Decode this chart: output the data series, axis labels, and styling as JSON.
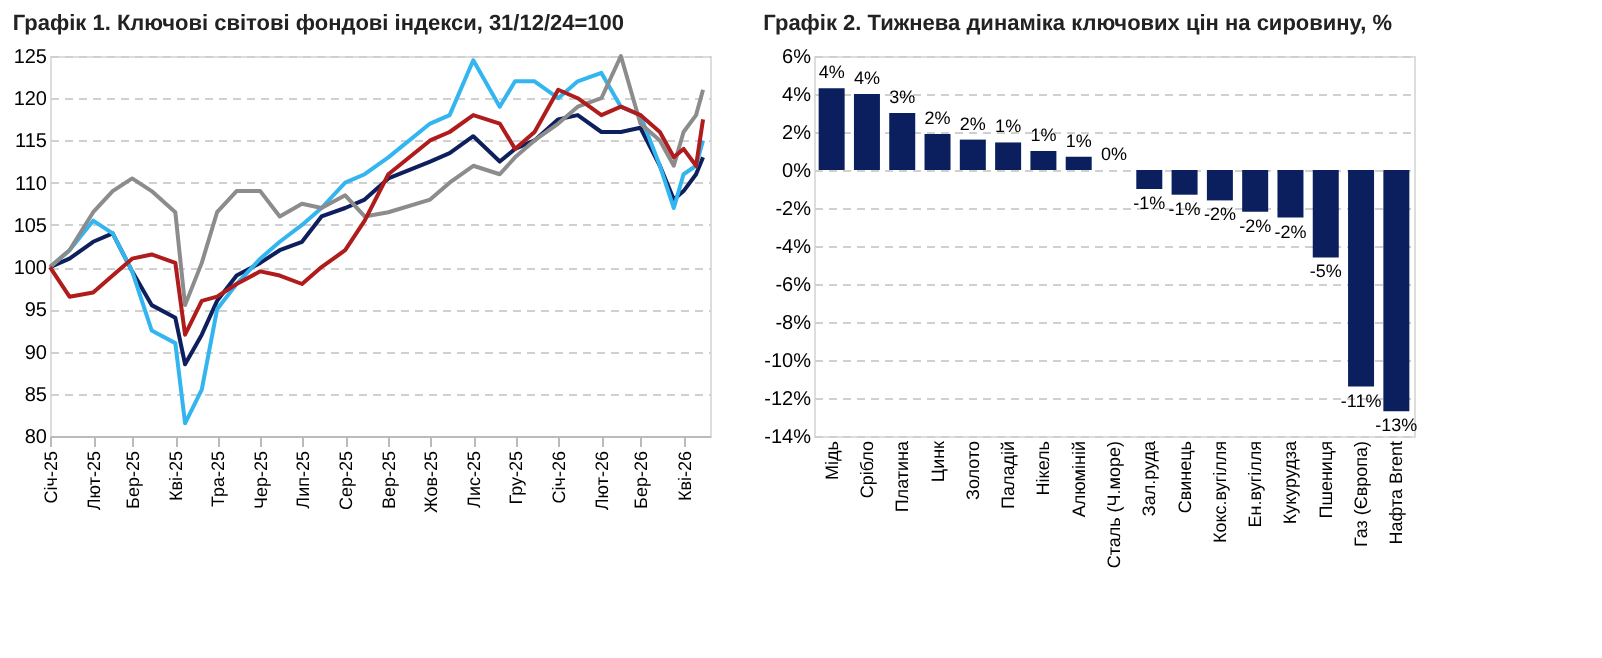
{
  "chart_data": [
    {
      "type": "line",
      "title": "Графік 1. Ключові світові фондові індекси, 31/12/24=100",
      "x": [
        "2025-01-01",
        "2025-01-15",
        "2025-02-01",
        "2025-02-15",
        "2025-03-01",
        "2025-03-15",
        "2025-04-01",
        "2025-04-08",
        "2025-04-20",
        "2025-05-01",
        "2025-05-15",
        "2025-06-01",
        "2025-06-15",
        "2025-07-01",
        "2025-07-15",
        "2025-08-01",
        "2025-08-15",
        "2025-09-01",
        "2025-10-01",
        "2025-10-15",
        "2025-11-01",
        "2025-11-20",
        "2025-12-01",
        "2025-12-15",
        "2026-01-01",
        "2026-01-15",
        "2026-02-01",
        "2026-02-15",
        "2026-03-01",
        "2026-03-15",
        "2026-03-25",
        "2026-04-01",
        "2026-04-10",
        "2026-04-15"
      ],
      "series": [
        {
          "color": "#0d1f5c",
          "values": [
            100,
            101,
            103,
            104,
            99.5,
            95.5,
            94,
            88.5,
            92,
            96,
            99,
            100.5,
            102,
            103,
            106,
            107,
            108,
            110.5,
            112.5,
            113.5,
            115.5,
            112.5,
            114,
            115,
            117.5,
            118,
            116,
            116,
            116.5,
            112,
            108,
            109,
            111,
            113
          ]
        },
        {
          "color": "#33b5f0",
          "values": [
            100,
            102,
            105.5,
            104,
            99.5,
            92.5,
            91,
            81.5,
            85.5,
            95,
            98,
            101,
            103,
            105,
            107,
            110,
            111,
            113,
            117,
            118,
            124.5,
            119,
            122,
            122,
            120,
            122,
            123,
            119,
            118,
            112,
            107,
            111,
            112,
            115
          ]
        },
        {
          "color": "#8c8c8c",
          "values": [
            100,
            102,
            106.5,
            109,
            110.5,
            109,
            106.5,
            95.5,
            100.5,
            106.5,
            109,
            109,
            106,
            107.5,
            107,
            108.5,
            106,
            106.5,
            108,
            110,
            112,
            111,
            113,
            115,
            117,
            119,
            120,
            125,
            117,
            115,
            112,
            116,
            118,
            121
          ]
        },
        {
          "color": "#b01c1c",
          "values": [
            100,
            96.5,
            97,
            99,
            101,
            101.5,
            100.5,
            92,
            96,
            96.5,
            98,
            99.5,
            99,
            98,
            100,
            102,
            105.5,
            111,
            115,
            116,
            118,
            117,
            114,
            116,
            121,
            120,
            118,
            119,
            118,
            116,
            113,
            114,
            112,
            117.5
          ]
        }
      ],
      "xlim": [
        "2025-01-01",
        "2026-04-20"
      ],
      "xticks": [
        {
          "value": "2025-01-01",
          "label": "Січ-25"
        },
        {
          "value": "2025-02-01",
          "label": "Лют-25"
        },
        {
          "value": "2025-03-01",
          "label": "Бер-25"
        },
        {
          "value": "2025-04-01",
          "label": "Кві-25"
        },
        {
          "value": "2025-05-01",
          "label": "Тра-25"
        },
        {
          "value": "2025-06-01",
          "label": "Чер-25"
        },
        {
          "value": "2025-07-01",
          "label": "Лип-25"
        },
        {
          "value": "2025-08-01",
          "label": "Сер-25"
        },
        {
          "value": "2025-09-01",
          "label": "Вер-25"
        },
        {
          "value": "2025-10-01",
          "label": "Жов-25"
        },
        {
          "value": "2025-11-01",
          "label": "Лис-25"
        },
        {
          "value": "2025-12-01",
          "label": "Гру-25"
        },
        {
          "value": "2026-01-01",
          "label": "Січ-26"
        },
        {
          "value": "2026-02-01",
          "label": "Лют-26"
        },
        {
          "value": "2026-03-01",
          "label": "Бер-26"
        },
        {
          "value": "2026-04-01",
          "label": "Кві-26"
        }
      ],
      "ylim": [
        80,
        125
      ],
      "yticks": [
        80,
        85,
        90,
        95,
        100,
        105,
        110,
        115,
        120,
        125
      ],
      "grid": "y",
      "line_style": "solid"
    },
    {
      "type": "bar",
      "title": "Графік 2. Тижнева динаміка ключових цін на сировину, %",
      "categories": [
        "Мідь",
        "Срібло",
        "Платина",
        "Цинк",
        "Золото",
        "Паладій",
        "Нікель",
        "Алюміній",
        "Сталь (Ч.море)",
        "Зал.руда",
        "Свинець",
        "Кокс.вугілля",
        "Ен.вугілля",
        "Кукурудза",
        "Пшениця",
        "Газ (Європа)",
        "Нафта Brent"
      ],
      "values": [
        4.3,
        4.0,
        3.0,
        1.9,
        1.6,
        1.45,
        1.0,
        0.7,
        0.0,
        -1.0,
        -1.3,
        -1.6,
        -2.2,
        -2.5,
        -4.6,
        -11.4,
        -12.7
      ],
      "value_labels": [
        "4%",
        "4%",
        "3%",
        "2%",
        "2%",
        "1%",
        "1%",
        "1%",
        "0%",
        "-1%",
        "-1%",
        "-2%",
        "-2%",
        "-2%",
        "-5%",
        "-11%",
        "-13%"
      ],
      "color": "#0b1f5e",
      "ylim": [
        -14,
        6
      ],
      "yticks": [
        {
          "value": -14,
          "label": "-14%"
        },
        {
          "value": -12,
          "label": "-12%"
        },
        {
          "value": -10,
          "label": "-10%"
        },
        {
          "value": -8,
          "label": "-8%"
        },
        {
          "value": -6,
          "label": "-6%"
        },
        {
          "value": -4,
          "label": "-4%"
        },
        {
          "value": -2,
          "label": "-2%"
        },
        {
          "value": 0,
          "label": "0%"
        },
        {
          "value": 2,
          "label": "2%"
        },
        {
          "value": 4,
          "label": "4%"
        },
        {
          "value": 6,
          "label": "6%"
        }
      ],
      "grid": "y"
    }
  ]
}
